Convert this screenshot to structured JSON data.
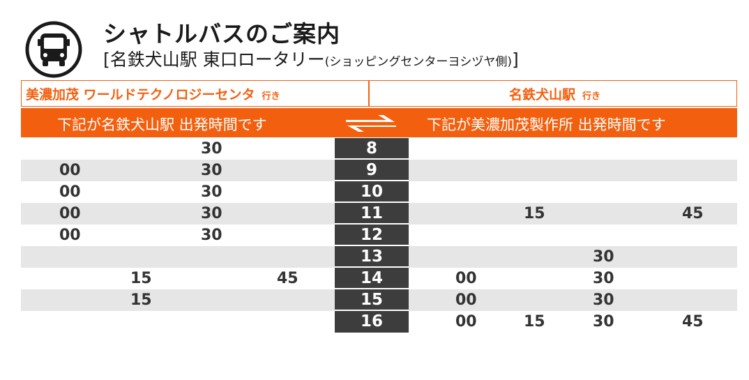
{
  "header": {
    "title": "シャトルバスのご案内",
    "subtitle_main": "[名鉄犬山駅 東口ロータリー",
    "subtitle_small": "(ショッピングセンターヨシヅヤ側)",
    "subtitle_end": "]"
  },
  "directions": {
    "left": {
      "name": "美濃加茂 ワールドテクノロジーセンタ",
      "suffix": "行き"
    },
    "right": {
      "name": "名鉄犬山駅",
      "suffix": "行き"
    }
  },
  "column_headers": {
    "left": "下記が名鉄犬山駅 出発時間です",
    "right": "下記が美濃加茂製作所 出発時間です"
  },
  "timetable": [
    {
      "hour": "8",
      "left": [
        "",
        "",
        "30",
        ""
      ],
      "right": [
        "",
        "",
        "",
        ""
      ]
    },
    {
      "hour": "9",
      "left": [
        "00",
        "",
        "30",
        ""
      ],
      "right": [
        "",
        "",
        "",
        ""
      ]
    },
    {
      "hour": "10",
      "left": [
        "00",
        "",
        "30",
        ""
      ],
      "right": [
        "",
        "",
        "",
        ""
      ]
    },
    {
      "hour": "11",
      "left": [
        "00",
        "",
        "30",
        ""
      ],
      "right": [
        "",
        "15",
        "",
        "45"
      ]
    },
    {
      "hour": "12",
      "left": [
        "00",
        "",
        "30",
        ""
      ],
      "right": [
        "",
        "",
        "",
        ""
      ]
    },
    {
      "hour": "13",
      "left": [
        "",
        "",
        "",
        ""
      ],
      "right": [
        "",
        "",
        "30",
        ""
      ]
    },
    {
      "hour": "14",
      "left": [
        "",
        "15",
        "",
        "45"
      ],
      "right": [
        "00",
        "",
        "30",
        ""
      ]
    },
    {
      "hour": "15",
      "left": [
        "",
        "15",
        "",
        ""
      ],
      "right": [
        "00",
        "",
        "30",
        ""
      ]
    },
    {
      "hour": "16",
      "left": [
        "",
        "",
        "",
        ""
      ],
      "right": [
        "00",
        "15",
        "30",
        "45"
      ]
    }
  ],
  "colors": {
    "accent": "#f2600f",
    "hour_bg": "#3d3d3d",
    "stripe": "#e6e6e6"
  },
  "icons": {
    "bus": "bus-icon",
    "swap": "swap-arrows-icon"
  }
}
